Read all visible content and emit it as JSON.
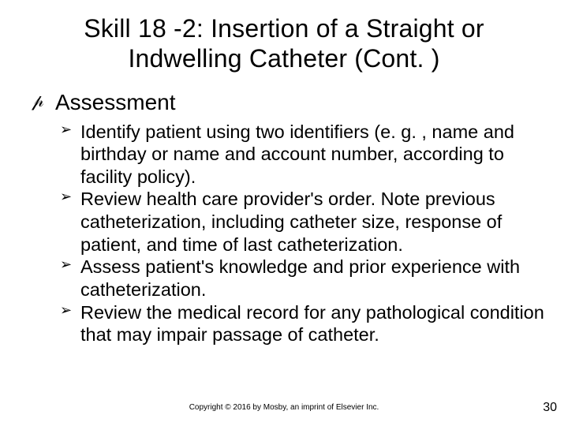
{
  "slide": {
    "title": "Skill 18 -2: Insertion of a Straight or Indwelling Catheter (Cont. )",
    "title_fontsize": 32,
    "title_align": "center",
    "background_color": "#ffffff",
    "text_color": "#000000",
    "outer_bullet_glyph": "✎",
    "outer_bullet_actual": "script-P",
    "inner_bullet_glyph": "➢",
    "page_number": "30",
    "footer": "Copyright © 2016 by Mosby, an imprint of Elsevier Inc.",
    "body": {
      "heading": "Assessment",
      "heading_fontsize": 28,
      "items_fontsize": 23.5,
      "items": [
        "Identify patient using two identifiers (e. g. , name and birthday or name and account number, according to facility policy).",
        "Review health care provider's order. Note previous catheterization, including catheter size, response of patient, and time of last catheterization.",
        "Assess patient's knowledge and prior experience with catheterization.",
        "Review the medical record for any pathological condition that may impair passage of catheter."
      ]
    }
  }
}
